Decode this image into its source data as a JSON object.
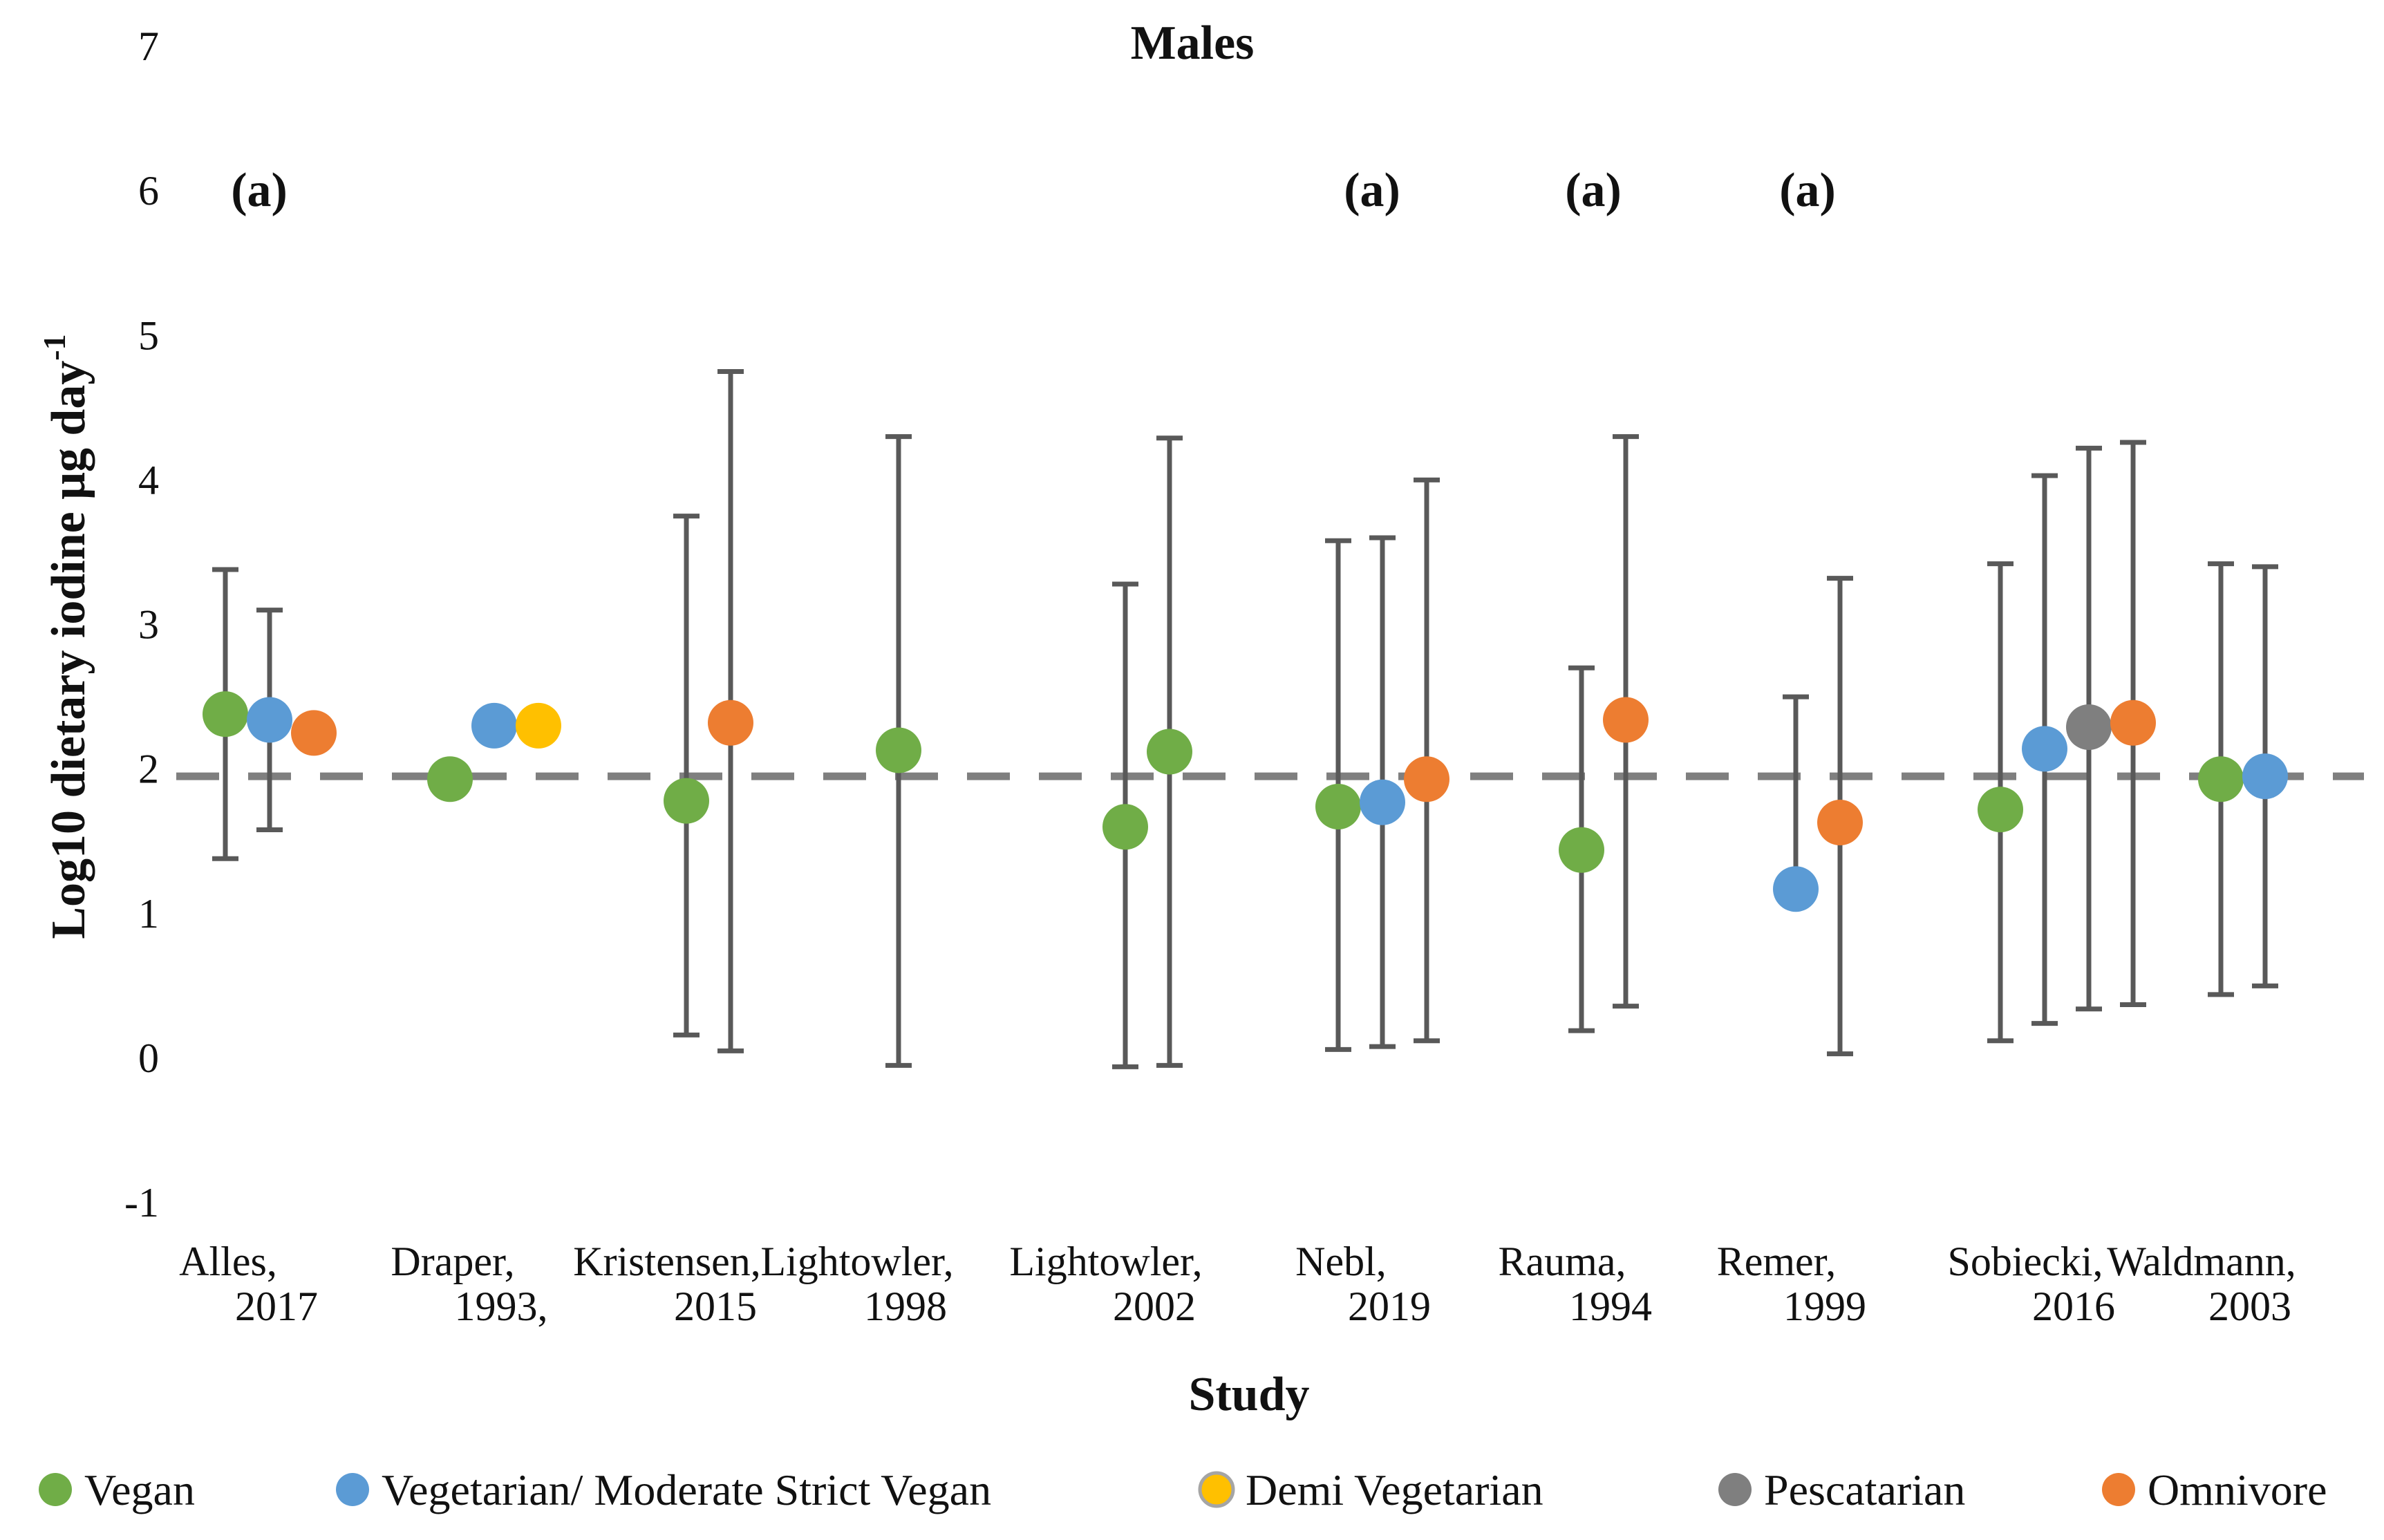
{
  "chart_data": {
    "type": "scatter",
    "title": "Males",
    "xlabel": "Study",
    "ylabel": "Log10 dietary iodine μg day",
    "ylabel_superscript": "-1",
    "ylim": [
      -1,
      7
    ],
    "yticks": [
      "-1",
      "0",
      "1",
      "2",
      "3",
      "4",
      "5",
      "6",
      "7"
    ],
    "reference_line": 1.95,
    "categories": [
      {
        "line1": "Alles,",
        "line2": "2017"
      },
      {
        "line1": "Draper,",
        "line2": "1993,"
      },
      {
        "line1": "Kristensen,",
        "line2": "2015"
      },
      {
        "line1": "Lightowler,",
        "line2": "1998"
      },
      {
        "line1": "Lightowler,",
        "line2": "2002"
      },
      {
        "line1": "Nebl,",
        "line2": "2019"
      },
      {
        "line1": "Rauma,",
        "line2": "1994"
      },
      {
        "line1": "Remer,",
        "line2": "1999"
      },
      {
        "line1": "Sobiecki,",
        "line2": "2016"
      },
      {
        "line1": "Waldmann,",
        "line2": "2003"
      }
    ],
    "annotations": [
      {
        "text": "(a)",
        "study": 0
      },
      {
        "text": "(a)",
        "study": 5
      },
      {
        "text": "(a)",
        "study": 6
      },
      {
        "text": "(a)",
        "study": 7
      }
    ],
    "series": [
      {
        "name": "Vegan",
        "color": "#70AD47"
      },
      {
        "name": "Vegetarian/ Moderate Strict Vegan",
        "color": "#5B9BD5"
      },
      {
        "name": "Demi Vegetarian",
        "color": "#FFC000"
      },
      {
        "name": "Pescatarian",
        "color": "#7F7F7F"
      },
      {
        "name": "Omnivore",
        "color": "#ED7D31"
      }
    ],
    "points": [
      {
        "study": 0,
        "series": 0,
        "y": 2.38,
        "lo": 1.38,
        "hi": 3.38
      },
      {
        "study": 0,
        "series": 1,
        "y": 2.34,
        "lo": 1.58,
        "hi": 3.1
      },
      {
        "study": 0,
        "series": 4,
        "y": 2.25,
        "lo": null,
        "hi": null
      },
      {
        "study": 1,
        "series": 0,
        "y": 1.93,
        "lo": null,
        "hi": null
      },
      {
        "study": 1,
        "series": 1,
        "y": 2.3,
        "lo": null,
        "hi": null
      },
      {
        "study": 1,
        "series": 2,
        "y": 2.3,
        "lo": null,
        "hi": null
      },
      {
        "study": 2,
        "series": 0,
        "y": 1.78,
        "lo": 0.16,
        "hi": 3.75
      },
      {
        "study": 2,
        "series": 4,
        "y": 2.32,
        "lo": 0.05,
        "hi": 4.75
      },
      {
        "study": 3,
        "series": 0,
        "y": 2.13,
        "lo": -0.05,
        "hi": 4.3
      },
      {
        "study": 4,
        "series": 0,
        "y": 1.6,
        "lo": -0.06,
        "hi": 3.28
      },
      {
        "study": 4,
        "series": 0,
        "y": 2.12,
        "lo": -0.05,
        "hi": 4.29
      },
      {
        "study": 5,
        "series": 0,
        "y": 1.74,
        "lo": 0.06,
        "hi": 3.58
      },
      {
        "study": 5,
        "series": 1,
        "y": 1.77,
        "lo": 0.08,
        "hi": 3.6
      },
      {
        "study": 5,
        "series": 4,
        "y": 1.93,
        "lo": 0.12,
        "hi": 4.0
      },
      {
        "study": 6,
        "series": 0,
        "y": 1.44,
        "lo": 0.19,
        "hi": 2.7
      },
      {
        "study": 6,
        "series": 4,
        "y": 2.34,
        "lo": 0.36,
        "hi": 4.3
      },
      {
        "study": 7,
        "series": 1,
        "y": 1.17,
        "lo": null,
        "hi": 2.5
      },
      {
        "study": 7,
        "series": 4,
        "y": 1.63,
        "lo": 0.03,
        "hi": 3.32
      },
      {
        "study": 8,
        "series": 0,
        "y": 1.72,
        "lo": 0.12,
        "hi": 3.42
      },
      {
        "study": 8,
        "series": 1,
        "y": 2.14,
        "lo": 0.24,
        "hi": 4.03
      },
      {
        "study": 8,
        "series": 3,
        "y": 2.29,
        "lo": 0.34,
        "hi": 4.22
      },
      {
        "study": 8,
        "series": 4,
        "y": 2.32,
        "lo": 0.37,
        "hi": 4.26
      },
      {
        "study": 9,
        "series": 0,
        "y": 1.93,
        "lo": 0.44,
        "hi": 3.42
      },
      {
        "study": 9,
        "series": 1,
        "y": 1.95,
        "lo": 0.5,
        "hi": 3.4
      }
    ]
  }
}
